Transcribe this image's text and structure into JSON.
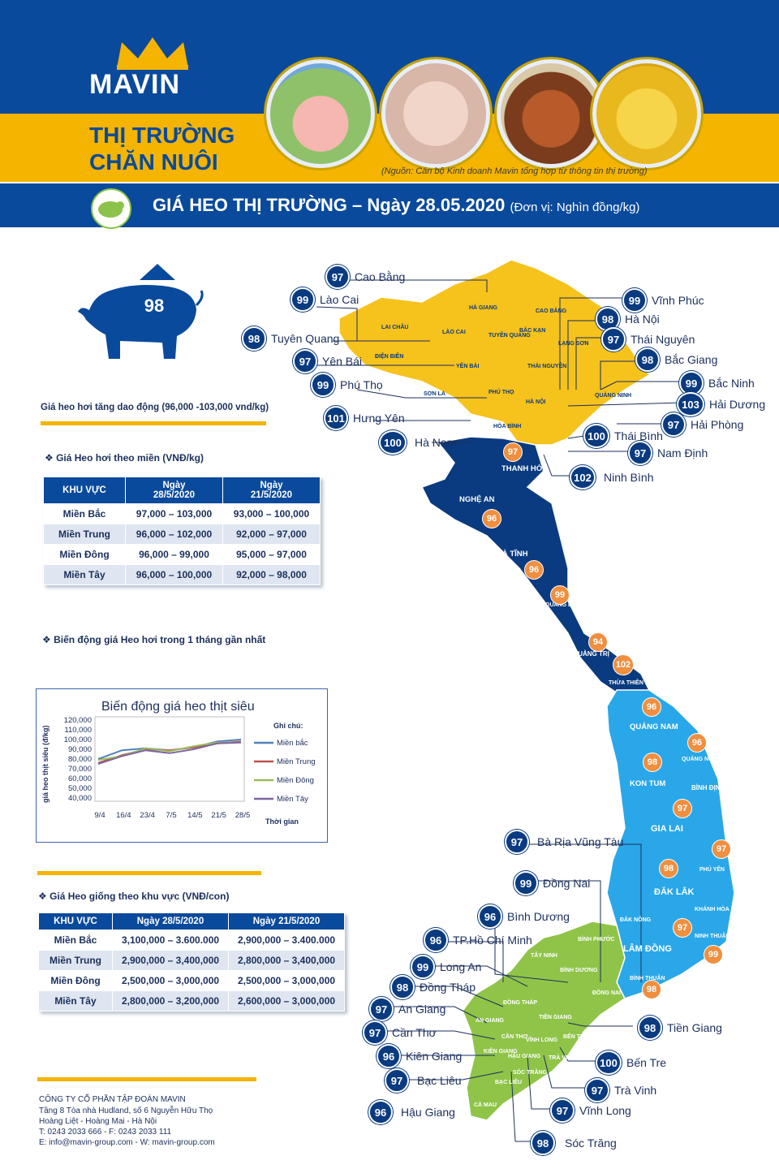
{
  "header": {
    "brand": "MAVIN",
    "title_line1": "THỊ TRƯỜNG",
    "title_line2": "CHĂN NUÔI",
    "source_note": "(Nguồn: Cán bộ Kinh doanh Mavin tổng hợp từ thông tin thị trường)",
    "banner_title": "GIÁ HEO THỊ TRƯỜNG – Ngày 28.05.2020",
    "banner_unit": "(Đơn vị: Nghìn đồng/kg)",
    "photos": [
      "pig-photo",
      "piglets-photo",
      "chicken-photo",
      "ducklings-photo"
    ]
  },
  "summary": {
    "pig_price": "98",
    "trend_note": "Giá heo hơi tăng dao động (96,000 -103,000 vnd/kg)"
  },
  "region_table": {
    "heading": "Giá Heo hơi theo miền (VNĐ/kg)",
    "headers": [
      "KHU VỰC",
      "Ngày\n28/5/2020",
      "Ngày\n21/5/2020"
    ],
    "rows": [
      [
        "Miền Bắc",
        "97,000 – 103,000",
        "93,000 – 100,000"
      ],
      [
        "Miền Trung",
        "96,000 – 102,000",
        "92,000 – 97,000"
      ],
      [
        "Miền Đông",
        "96,000 – 99,000",
        "95,000 – 97,000"
      ],
      [
        "Miền Tây",
        "96,000 – 100,000",
        "92,000 – 98,000"
      ]
    ]
  },
  "chart_heading": "Biến động giá Heo hơi trong 1 tháng gần nhất",
  "chart_data": {
    "type": "line",
    "title": "Biến động giá heo thịt siêu",
    "ylabel": "giá heo thịt siêu (đ/kg)",
    "xlabel": "Thời gian",
    "legend_title": "Ghi chú:",
    "legend_position": "right",
    "categories": [
      "9/4",
      "16/4",
      "23/4",
      "7/5",
      "14/5",
      "21/5",
      "28/5"
    ],
    "ylim": [
      40000,
      120000
    ],
    "yticks": [
      "120,000",
      "110,000",
      "100,000",
      "90,000",
      "80,000",
      "70,000",
      "60,000",
      "50,000",
      "40,000"
    ],
    "series": [
      {
        "name": "Miền bắc",
        "color": "#4f81bd",
        "values": [
          80000,
          89000,
          91000,
          89000,
          92000,
          98000,
          100000
        ]
      },
      {
        "name": "Miền Trung",
        "color": "#c0504d",
        "values": [
          76000,
          84000,
          90000,
          89000,
          92000,
          96000,
          98000
        ]
      },
      {
        "name": "Miền Đông",
        "color": "#9bbb59",
        "values": [
          79000,
          83000,
          91000,
          88000,
          93000,
          97000,
          97000
        ]
      },
      {
        "name": "Miền Tây",
        "color": "#8064a2",
        "values": [
          75000,
          83000,
          89000,
          86000,
          90000,
          96000,
          97000
        ]
      }
    ]
  },
  "piglet_table": {
    "heading": "Giá Heo giống theo khu vực (VNĐ/con)",
    "headers": [
      "KHU VỰC",
      "Ngày 28/5/2020",
      "Ngày 21/5/2020"
    ],
    "rows": [
      [
        "Miền Bắc",
        "3,100,000 – 3.600.000",
        "2,900,000 – 3.400.000"
      ],
      [
        "Miền Trung",
        "2,900,000 – 3,400,000",
        "2,800,000 – 3,400,000"
      ],
      [
        "Miền Đông",
        "2,500,000 – 3,000,000",
        "2,500,000 – 3,000,000"
      ],
      [
        "Miền Tây",
        "2,800,000 – 3,200,000",
        "2,600,000 – 3,000,000"
      ]
    ]
  },
  "footer": {
    "company": "CÔNG TY CỔ PHẦN TẬP ĐOÀN MAVIN",
    "address1": "Tầng 8 Tòa nhà Hudland, số 6 Nguyễn Hữu Thọ",
    "address2": "Hoàng Liệt - Hoàng Mai - Hà Nội",
    "phone": "T: 0243 2033 666 - F: 0243 2033 111",
    "contact": "E: info@mavin-group.com - W: mavin-group.com"
  },
  "map_pins": [
    {
      "price": "97",
      "name": "Cao Bằng"
    },
    {
      "price": "99",
      "name": "Lào Cai"
    },
    {
      "price": "98",
      "name": "Tuyên Quang"
    },
    {
      "price": "97",
      "name": "Yên Bái"
    },
    {
      "price": "99",
      "name": "Phú Thọ"
    },
    {
      "price": "101",
      "name": "Hưng Yên"
    },
    {
      "price": "100",
      "name": "Hà Nam"
    },
    {
      "price": "99",
      "name": "Vĩnh Phúc"
    },
    {
      "price": "98",
      "name": "Hà Nội"
    },
    {
      "price": "97",
      "name": "Thái Nguyên"
    },
    {
      "price": "98",
      "name": "Bắc Giang"
    },
    {
      "price": "99",
      "name": "Bắc Ninh"
    },
    {
      "price": "103",
      "name": "Hải Dương"
    },
    {
      "price": "97",
      "name": "Hải Phòng"
    },
    {
      "price": "100",
      "name": "Thái Bình"
    },
    {
      "price": "97",
      "name": "Nam Định"
    },
    {
      "price": "102",
      "name": "Ninh Bình"
    },
    {
      "price": "97",
      "name": "Bà Rịa Vũng Tàu"
    },
    {
      "price": "99",
      "name": "Đồng Nai"
    },
    {
      "price": "96",
      "name": "Bình Dương"
    },
    {
      "price": "96",
      "name": "TP.Hồ Chí Minh"
    },
    {
      "price": "99",
      "name": "Long An"
    },
    {
      "price": "98",
      "name": "Đồng Tháp"
    },
    {
      "price": "97",
      "name": "An Giang"
    },
    {
      "price": "97",
      "name": "Cần Thơ"
    },
    {
      "price": "96",
      "name": "Kiên Giang"
    },
    {
      "price": "97",
      "name": "Bạc Liêu"
    },
    {
      "price": "96",
      "name": "Hậu Giang"
    },
    {
      "price": "98",
      "name": "Tiền Giang"
    },
    {
      "price": "100",
      "name": "Bến Tre"
    },
    {
      "price": "97",
      "name": "Trà Vinh"
    },
    {
      "price": "97",
      "name": "Vĩnh Long"
    },
    {
      "price": "98",
      "name": "Sóc Trăng"
    }
  ],
  "map_values": [
    "97",
    "96",
    "96",
    "99",
    "94",
    "102",
    "96",
    "96",
    "98",
    "97",
    "97",
    "98",
    "97",
    "99",
    "98"
  ],
  "map_regions": {
    "north": [
      "HÀ GIANG",
      "CAO BẰNG",
      "LAI CHÂU",
      "LÀO CAI",
      "BẮC KẠN",
      "TUYÊN QUANG",
      "LẠNG SƠN",
      "ĐIỆN BIÊN",
      "YÊN BÁI",
      "THÁI NGUYÊN",
      "SƠN LA",
      "PHÚ THỌ",
      "HÀ NỘI",
      "QUẢNG NINH",
      "HÒA BÌNH"
    ],
    "central": [
      "THANH HÓA",
      "NGHỆ AN",
      "HÀ TĨNH",
      "QUẢNG BÌNH",
      "QUẢNG TRỊ",
      "THỪA THIÊN HUẾ"
    ],
    "highlands": [
      "QUẢNG NAM",
      "QUẢNG NGÃI",
      "KON TUM",
      "BÌNH ĐỊNH",
      "GIA LAI",
      "PHÚ YÊN",
      "ĐẮK LẮK",
      "KHÁNH HÒA",
      "ĐẮK NÔNG",
      "NINH THUẬN",
      "LÂM ĐỒNG",
      "BÌNH THUẬN"
    ],
    "south": [
      "BÌNH PHƯỚC",
      "TÂY NINH",
      "BÌNH DƯƠNG",
      "ĐỒNG NAI",
      "ĐỒNG THÁP",
      "AN GIANG",
      "TIỀN GIANG",
      "VĨNH LONG",
      "CẦN THƠ",
      "BẾN TRE",
      "KIÊN GIANG",
      "HẬU GIANG",
      "TRÀ VINH",
      "SÓC TRĂNG",
      "BẠC LIÊU",
      "CÀ MAU"
    ]
  },
  "colors": {
    "navy": "#0a4a9c",
    "yellow": "#f4b400",
    "orange": "#ef8f3f",
    "green": "#8bc34a",
    "sky": "#2aa7e8"
  }
}
